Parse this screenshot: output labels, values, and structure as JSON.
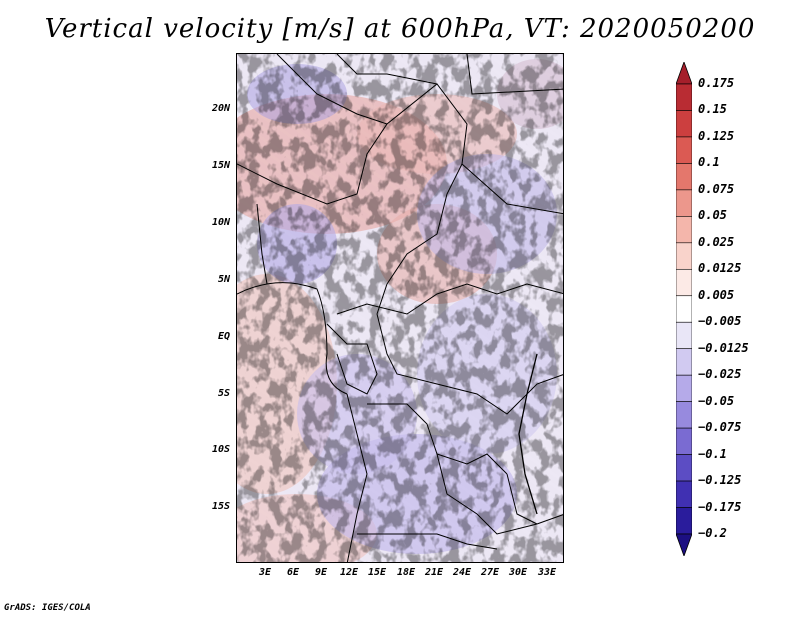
{
  "title": "Vertical velocity [m/s] at 600hPa, VT: 2020050200",
  "y_ticks": [
    "20N",
    "15N",
    "10N",
    "5N",
    "EQ",
    "5S",
    "10S",
    "15S"
  ],
  "x_ticks": [
    "3E",
    "6E",
    "9E",
    "12E",
    "15E",
    "18E",
    "21E",
    "24E",
    "27E",
    "30E",
    "33E"
  ],
  "colorbar": {
    "labels": [
      "0.175",
      "0.15",
      "0.125",
      "0.1",
      "0.075",
      "0.05",
      "0.025",
      "0.0125",
      "0.005",
      "−0.005",
      "−0.0125",
      "−0.025",
      "−0.05",
      "−0.075",
      "−0.1",
      "−0.125",
      "−0.175",
      "−0.2"
    ],
    "colors": [
      "#a51f2b",
      "#b92c33",
      "#cc3f3f",
      "#db5a53",
      "#e4776c",
      "#ec978c",
      "#f4b6ab",
      "#f9d3cb",
      "#fceae6",
      "#ffffff",
      "#e9e6f7",
      "#d1caf1",
      "#b5aae9",
      "#978ade",
      "#7a6bd2",
      "#5c4dc4",
      "#4030b2",
      "#2a1c9c",
      "#1c0f82"
    ]
  },
  "credit": "GrADS: IGES/COLA"
}
